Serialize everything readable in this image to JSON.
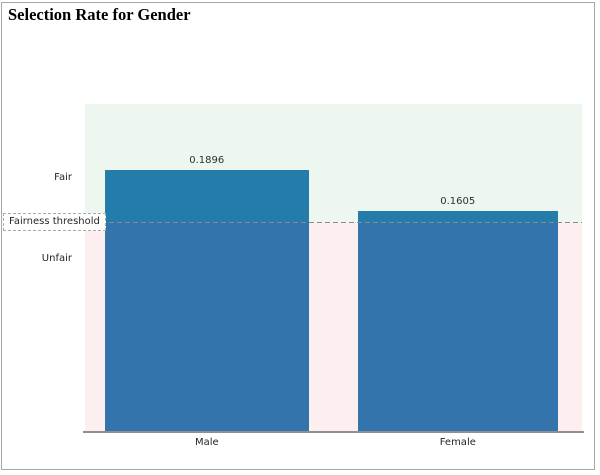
{
  "window": {
    "title": "Selection Rate for Gender"
  },
  "chart_data": {
    "type": "bar",
    "title": "Selection Rate for Gender",
    "categories": [
      "Male",
      "Female"
    ],
    "values": [
      0.1896,
      0.1605
    ],
    "value_labels": [
      "0.1896",
      "0.1605"
    ],
    "ylim": [
      0,
      0.2377
    ],
    "threshold": 0.1517,
    "threshold_label": "Fairness threshold",
    "region_labels": {
      "fair": "Fair",
      "unfair": "Unfair"
    },
    "bar_color": "#1f77b4",
    "fair_region_color": "#eef7ef",
    "unfair_region_color": "#fdeff0",
    "threshold_line_color": "#8a8a8a",
    "grid": false,
    "legend_position": "none",
    "xlabel": "",
    "ylabel": ""
  }
}
